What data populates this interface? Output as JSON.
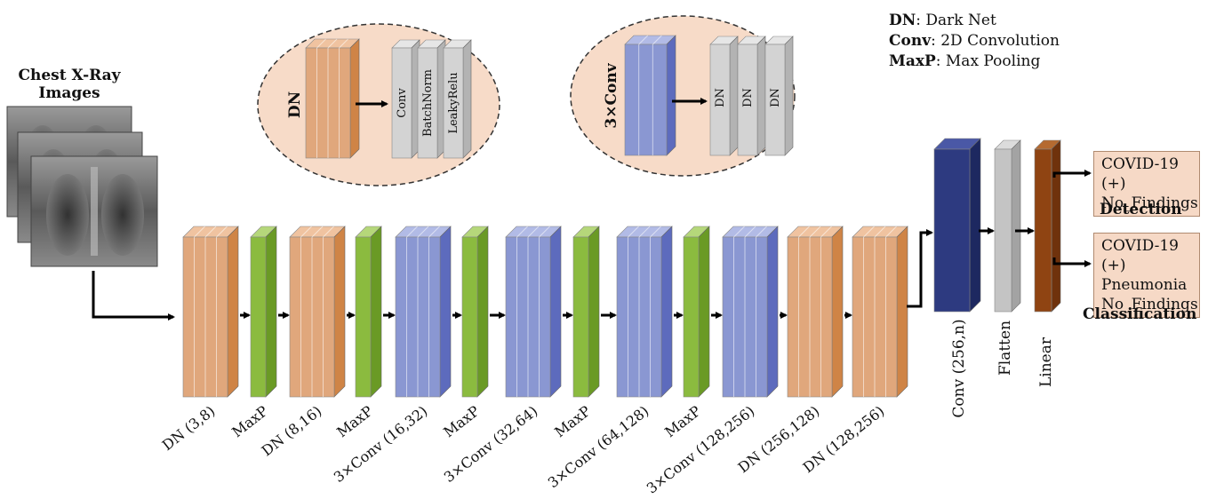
{
  "input": {
    "title_line1": "Chest X-Ray",
    "title_line2": "Images"
  },
  "legend": [
    {
      "abbr": "DN",
      "text": ": Dark Net"
    },
    {
      "abbr": "Conv",
      "text": ": 2D Convolution"
    },
    {
      "abbr": "MaxP",
      "text": ": Max Pooling"
    }
  ],
  "inset_dn": {
    "label": "DN",
    "layers": [
      "Conv",
      "BatchNorm",
      "LeakyRelu"
    ]
  },
  "inset_3conv": {
    "label": "3×Conv",
    "layers": [
      "DN",
      "DN",
      "DN"
    ]
  },
  "pipeline": [
    {
      "type": "dn",
      "label": "DN (3,8)"
    },
    {
      "type": "maxp",
      "label": "MaxP"
    },
    {
      "type": "dn",
      "label": "DN (8,16)"
    },
    {
      "type": "maxp",
      "label": "MaxP"
    },
    {
      "type": "conv3",
      "label": "3×Conv (16,32)"
    },
    {
      "type": "maxp",
      "label": "MaxP"
    },
    {
      "type": "conv3",
      "label": "3×Conv (32,64)"
    },
    {
      "type": "maxp",
      "label": "MaxP"
    },
    {
      "type": "conv3",
      "label": "3×Conv (64,128)"
    },
    {
      "type": "maxp",
      "label": "MaxP"
    },
    {
      "type": "conv3",
      "label": "3×Conv (128,256)"
    },
    {
      "type": "dn",
      "label": "DN (256,128)"
    },
    {
      "type": "dn",
      "label": "DN  (128,256)"
    }
  ],
  "head": {
    "conv_label": "Conv (256,n)",
    "flatten_label": "Flatten",
    "linear_label": "Linear"
  },
  "outputs": {
    "detection": {
      "items": [
        "COVID-19 (+)",
        "No_Findings"
      ],
      "caption": "Detection"
    },
    "classification": {
      "items": [
        "COVID-19 (+)",
        "Pneumonia",
        "No_Findings"
      ],
      "caption": "Classification"
    }
  },
  "colors": {
    "dn_front": "#e0a77c",
    "dn_side": "#cf8446",
    "dn_top": "#f0c3a0",
    "maxp_front": "#8bbb3f",
    "maxp_side": "#6a9a25",
    "maxp_top": "#b5d77a",
    "conv3_front": "#8a97d2",
    "conv3_side": "#5d6bbd",
    "conv3_top": "#b2bbe6",
    "head_conv_front": "#2d3a80",
    "head_conv_side": "#1d2860",
    "head_conv_top": "#4a58a6",
    "flatten_front": "#c4c4c4",
    "flatten_side": "#a3a3a3",
    "flatten_top": "#dcdcdc",
    "linear_front": "#8f4412",
    "linear_side": "#6f320c",
    "linear_top": "#b56a30",
    "inset_fill": "#f7dbc8"
  }
}
